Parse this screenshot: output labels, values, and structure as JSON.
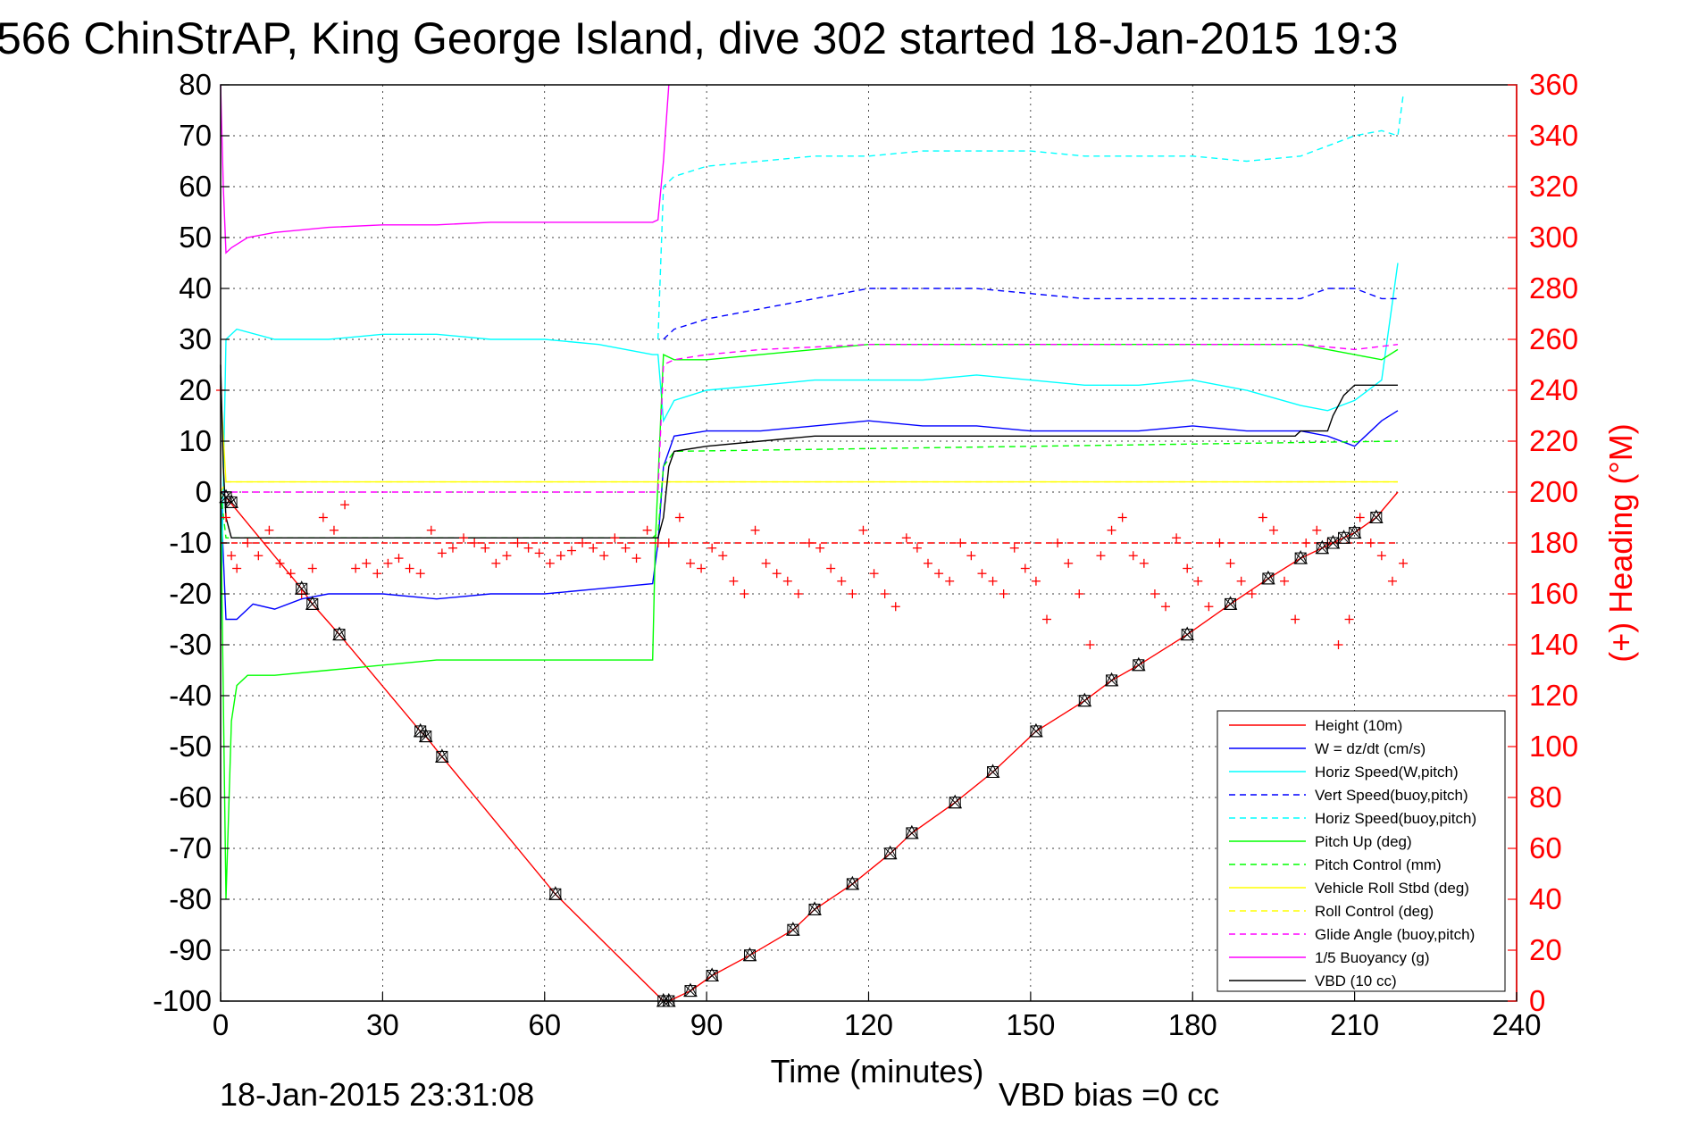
{
  "title": "566 ChinStrAP, King George Island, dive 302 started 18-Jan-2015 19:3",
  "footer": {
    "timestamp": "18-Jan-2015 23:31:08",
    "vbd_bias": "VBD bias =0 cc"
  },
  "colors": {
    "red": "#ff0000",
    "blue": "#0000ff",
    "cyan": "#00ffff",
    "green": "#00ff00",
    "yellow": "#ffff00",
    "magenta": "#ff00ff",
    "black": "#000000"
  },
  "chart_data": {
    "type": "line",
    "xlabel": "Time (minutes)",
    "ylabel_right": "(+) Heading (°M)",
    "xlim": [
      0,
      240
    ],
    "ylim": [
      -100,
      80
    ],
    "ylim_right": [
      0,
      360
    ],
    "x_ticks": [
      "0",
      "30",
      "60",
      "90",
      "120",
      "150",
      "180",
      "210",
      "240"
    ],
    "y_ticks": [
      "80",
      "70",
      "60",
      "50",
      "40",
      "30",
      "20",
      "10",
      "0",
      "-10",
      "-20",
      "-30",
      "-40",
      "-50",
      "-60",
      "-70",
      "-80",
      "-90",
      "-100"
    ],
    "y_ticks_right": [
      "360",
      "340",
      "320",
      "300",
      "280",
      "260",
      "240",
      "220",
      "200",
      "180",
      "160",
      "140",
      "120",
      "100",
      "80",
      "60",
      "40",
      "20",
      "0"
    ],
    "grid": true,
    "legend_position": "bottom-right",
    "series": [
      {
        "name": "Height (10m)",
        "color": "#ff0000",
        "dash": "solid",
        "x": [
          0,
          1,
          15,
          17,
          22,
          37,
          38,
          41,
          62,
          82,
          83,
          87,
          91,
          98,
          106,
          110,
          117,
          124,
          128,
          136,
          143,
          151,
          160,
          165,
          170,
          179,
          187,
          194,
          200,
          204,
          206,
          208,
          210,
          214,
          218
        ],
        "y": [
          0,
          -1,
          -19,
          -22,
          -28,
          -47,
          -48,
          -52,
          -79,
          -100,
          -100,
          -98,
          -95,
          -91,
          -86,
          -82,
          -77,
          -71,
          -67,
          -61,
          -55,
          -47,
          -41,
          -37,
          -34,
          -28,
          -22,
          -17,
          -13,
          -11,
          -10,
          -9,
          -8,
          -5,
          0
        ]
      },
      {
        "name": "W = dz/dt (cm/s)",
        "color": "#0000ff",
        "dash": "solid",
        "x": [
          0,
          1,
          3,
          6,
          10,
          15,
          20,
          30,
          40,
          50,
          60,
          70,
          80,
          81,
          82,
          84,
          90,
          100,
          110,
          120,
          130,
          140,
          150,
          160,
          170,
          180,
          190,
          200,
          205,
          210,
          215,
          218
        ],
        "y": [
          0,
          -25,
          -25,
          -22,
          -23,
          -21,
          -20,
          -20,
          -21,
          -20,
          -20,
          -19,
          -18,
          -10,
          5,
          11,
          12,
          12,
          13,
          14,
          13,
          13,
          12,
          12,
          12,
          13,
          12,
          12,
          11,
          9,
          14,
          16
        ]
      },
      {
        "name": "Horiz Speed(W,pitch)",
        "color": "#00ffff",
        "dash": "solid",
        "x": [
          0,
          1,
          3,
          10,
          20,
          30,
          40,
          50,
          60,
          70,
          80,
          81,
          82,
          84,
          90,
          100,
          110,
          120,
          130,
          140,
          150,
          160,
          170,
          180,
          190,
          200,
          205,
          210,
          215,
          218
        ],
        "y": [
          -27,
          30,
          32,
          30,
          30,
          31,
          31,
          30,
          30,
          29,
          27,
          27,
          14,
          18,
          20,
          21,
          22,
          22,
          22,
          23,
          22,
          21,
          21,
          22,
          20,
          17,
          16,
          18,
          22,
          45
        ]
      },
      {
        "name": "Vert Speed(buoy,pitch)",
        "color": "#0000ff",
        "dash": "dashed",
        "x": [
          82,
          84,
          90,
          100,
          110,
          120,
          130,
          140,
          150,
          160,
          170,
          180,
          190,
          200,
          205,
          210,
          215,
          218
        ],
        "y": [
          30,
          32,
          34,
          36,
          38,
          40,
          40,
          40,
          39,
          38,
          38,
          38,
          38,
          38,
          40,
          40,
          38,
          38
        ]
      },
      {
        "name": "Horiz Speed(buoy,pitch)",
        "color": "#00ffff",
        "dash": "dashed",
        "x": [
          81,
          82,
          84,
          90,
          100,
          110,
          120,
          130,
          140,
          150,
          160,
          170,
          180,
          190,
          200,
          205,
          210,
          215,
          218,
          219
        ],
        "y": [
          30,
          60,
          62,
          64,
          65,
          66,
          66,
          67,
          67,
          67,
          66,
          66,
          66,
          65,
          66,
          68,
          70,
          71,
          70,
          78
        ]
      },
      {
        "name": "Pitch Up (deg)",
        "color": "#00ff00",
        "dash": "solid",
        "x": [
          0,
          1,
          2,
          3,
          5,
          10,
          20,
          30,
          40,
          50,
          60,
          70,
          80,
          80.5,
          82,
          84,
          90,
          100,
          110,
          120,
          130,
          140,
          150,
          160,
          170,
          180,
          190,
          200,
          205,
          210,
          215,
          218
        ],
        "y": [
          0,
          -80,
          -45,
          -38,
          -36,
          -36,
          -35,
          -34,
          -33,
          -33,
          -33,
          -33,
          -33,
          -10,
          27,
          26,
          26,
          27,
          28,
          29,
          29,
          29,
          29,
          29,
          29,
          29,
          29,
          29,
          28,
          27,
          26,
          28
        ]
      },
      {
        "name": "Pitch Control (mm)",
        "color": "#00ff00",
        "dash": "dashed",
        "x": [
          0,
          1,
          2,
          80,
          81,
          82,
          84,
          218
        ],
        "y": [
          0,
          -9,
          -9,
          -9,
          -8,
          5,
          8,
          10
        ]
      },
      {
        "name": "Vehicle Roll Stbd (deg)",
        "color": "#ffff00",
        "dash": "solid",
        "x": [
          0,
          1,
          2,
          80,
          82,
          84,
          218
        ],
        "y": [
          20,
          2,
          2,
          2,
          2,
          2,
          2
        ]
      },
      {
        "name": "Roll Control (deg)",
        "color": "#ffff00",
        "dash": "dashed",
        "x": [
          0,
          1,
          2,
          218
        ],
        "y": [
          0,
          2,
          2,
          2
        ]
      },
      {
        "name": "Glide Angle (buoy,pitch)",
        "color": "#ff00ff",
        "dash": "dashed",
        "x": [
          0,
          1,
          2,
          81,
          82,
          84,
          90,
          100,
          120,
          140,
          160,
          180,
          200,
          210,
          218
        ],
        "y": [
          0,
          0,
          0,
          0,
          25,
          26,
          27,
          28,
          29,
          29,
          29,
          29,
          29,
          28,
          29
        ]
      },
      {
        "name": "1/5 Buoyancy (g)",
        "color": "#ff00ff",
        "dash": "solid",
        "x": [
          0,
          0.5,
          1,
          2,
          5,
          10,
          20,
          30,
          40,
          50,
          60,
          70,
          80,
          81,
          82,
          83
        ],
        "y": [
          80,
          60,
          47,
          48,
          50,
          51,
          52,
          52.5,
          52.5,
          53,
          53,
          53,
          53,
          53.5,
          65,
          80
        ]
      },
      {
        "name": "VBD (10 cc)",
        "color": "#000000",
        "dash": "solid",
        "x": [
          0,
          0.5,
          1,
          2,
          80,
          81,
          82,
          83,
          84,
          90,
          100,
          110,
          130,
          150,
          170,
          190,
          199,
          200,
          205,
          206,
          207,
          208,
          209,
          210,
          211,
          218
        ],
        "y": [
          25,
          5,
          -5,
          -9,
          -9,
          -9,
          -5,
          5,
          8,
          9,
          10,
          11,
          11,
          11,
          11,
          11,
          11,
          12,
          12,
          15,
          17,
          19,
          20,
          21,
          21,
          21
        ]
      },
      {
        "name": "",
        "color": "#ff0000",
        "dash": "dashed",
        "x": [
          0,
          218
        ],
        "y": [
          -10,
          -10
        ]
      }
    ],
    "heading_points": {
      "axis": "right",
      "color": "#ff0000",
      "marker": "+",
      "x": [
        0,
        1,
        2,
        3,
        5,
        7,
        9,
        11,
        13,
        15,
        17,
        19,
        21,
        23,
        25,
        27,
        29,
        31,
        33,
        35,
        37,
        39,
        41,
        43,
        45,
        47,
        49,
        51,
        53,
        55,
        57,
        59,
        61,
        63,
        65,
        67,
        69,
        71,
        73,
        75,
        77,
        79,
        81,
        83,
        85,
        87,
        89,
        91,
        93,
        95,
        97,
        99,
        101,
        103,
        105,
        107,
        109,
        111,
        113,
        115,
        117,
        119,
        121,
        123,
        125,
        127,
        129,
        131,
        133,
        135,
        137,
        139,
        141,
        143,
        145,
        147,
        149,
        151,
        153,
        155,
        157,
        159,
        161,
        163,
        165,
        167,
        169,
        171,
        173,
        175,
        177,
        179,
        181,
        183,
        185,
        187,
        189,
        191,
        193,
        195,
        197,
        199,
        201,
        203,
        205,
        207,
        209,
        211,
        213,
        215,
        217,
        219
      ],
      "y": [
        240,
        190,
        175,
        170,
        180,
        175,
        185,
        172,
        168,
        160,
        170,
        190,
        185,
        195,
        170,
        172,
        168,
        172,
        174,
        170,
        168,
        185,
        176,
        178,
        182,
        180,
        178,
        172,
        175,
        180,
        178,
        176,
        172,
        175,
        177,
        180,
        178,
        175,
        182,
        178,
        174,
        185,
        180,
        180,
        190,
        172,
        170,
        178,
        175,
        165,
        160,
        185,
        172,
        168,
        165,
        160,
        180,
        178,
        170,
        165,
        160,
        185,
        168,
        160,
        155,
        182,
        178,
        172,
        168,
        165,
        180,
        175,
        168,
        165,
        160,
        178,
        170,
        165,
        150,
        180,
        172,
        160,
        140,
        175,
        185,
        190,
        175,
        172,
        160,
        155,
        182,
        170,
        165,
        155,
        180,
        172,
        165,
        160,
        190,
        185,
        165,
        150,
        180,
        185,
        180,
        140,
        150,
        190,
        180,
        175,
        165,
        172
      ]
    },
    "marker_points": {
      "color": "#000000",
      "markers": [
        "triangle",
        "cross-square"
      ],
      "x": [
        1,
        2,
        15,
        17,
        22,
        37,
        38,
        41,
        62,
        82,
        83,
        87,
        91,
        98,
        106,
        110,
        117,
        124,
        128,
        136,
        143,
        151,
        160,
        165,
        170,
        179,
        187,
        194,
        200,
        204,
        206,
        208,
        210,
        214
      ],
      "y": [
        -1,
        -2,
        -19,
        -22,
        -28,
        -47,
        -48,
        -52,
        -79,
        -100,
        -100,
        -98,
        -95,
        -91,
        -86,
        -82,
        -77,
        -71,
        -67,
        -61,
        -55,
        -47,
        -41,
        -37,
        -34,
        -28,
        -22,
        -17,
        -13,
        -11,
        -10,
        -9,
        -8,
        -5
      ]
    }
  }
}
